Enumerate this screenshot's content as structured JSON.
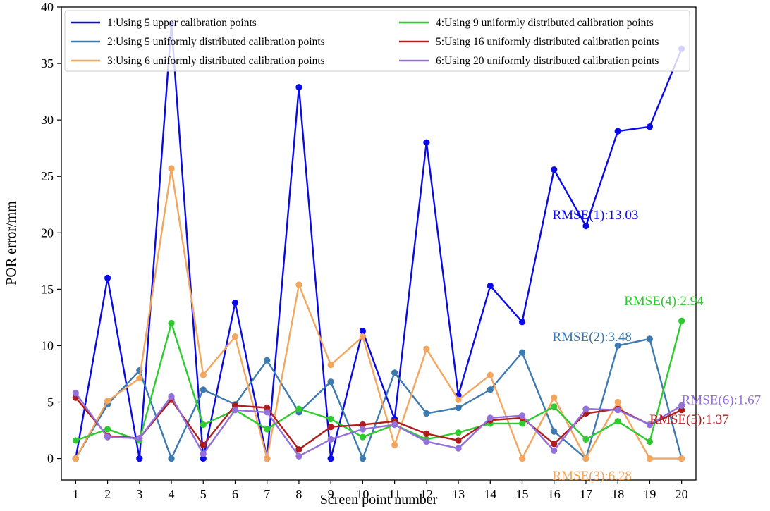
{
  "chart_data": {
    "type": "line",
    "xlabel": "Screen point number",
    "ylabel": "POR error/mm",
    "xlim": [
      0.55,
      20.45
    ],
    "ylim": [
      -1.9,
      40
    ],
    "x": [
      1,
      2,
      3,
      4,
      5,
      6,
      7,
      8,
      9,
      10,
      11,
      12,
      13,
      14,
      15,
      16,
      17,
      18,
      19,
      20
    ],
    "yticks": [
      0,
      5,
      10,
      15,
      20,
      25,
      30,
      35,
      40
    ],
    "legend_position": "top",
    "series": [
      {
        "name": "1:Using 5 upper calibration points",
        "color": "#0a0ae6",
        "values": [
          0,
          16.0,
          0,
          38.5,
          0,
          13.8,
          0,
          32.9,
          0,
          11.3,
          3.5,
          28.0,
          5.6,
          15.3,
          12.1,
          25.6,
          20.6,
          29.0,
          29.4,
          36.3
        ]
      },
      {
        "name": "2:Using 5 uniformly distributed calibration points",
        "color": "#3d7ab0",
        "values": [
          0,
          4.8,
          7.8,
          0,
          6.1,
          4.8,
          8.7,
          4.1,
          6.8,
          0,
          7.6,
          4.0,
          4.5,
          6.1,
          9.4,
          2.4,
          0,
          10.0,
          10.6,
          0
        ]
      },
      {
        "name": "3:Using 6 uniformly distributed calibration points",
        "color": "#f2a65e",
        "values": [
          0,
          5.1,
          7.1,
          25.7,
          7.4,
          10.8,
          0,
          15.4,
          8.3,
          10.8,
          1.2,
          9.7,
          5.2,
          7.4,
          0,
          5.4,
          0,
          5.0,
          0,
          0
        ]
      },
      {
        "name": "4:Using 9 uniformly distributed calibration points",
        "color": "#2fca2f",
        "values": [
          1.6,
          2.6,
          1.6,
          12.0,
          3.0,
          4.3,
          2.6,
          4.4,
          3.5,
          1.9,
          3.0,
          1.7,
          2.3,
          3.1,
          3.1,
          4.6,
          1.7,
          3.3,
          1.5,
          12.2
        ]
      },
      {
        "name": "5:Using 16 uniformly distributed calibration points",
        "color": "#b01c1c",
        "values": [
          5.4,
          2.0,
          1.8,
          5.2,
          1.2,
          4.7,
          4.5,
          0.8,
          2.8,
          3.0,
          3.3,
          2.2,
          1.6,
          3.4,
          3.6,
          1.3,
          4.0,
          4.4,
          3.0,
          4.3
        ]
      },
      {
        "name": "6:Using 20 uniformly distributed calibration points",
        "color": "#9370db",
        "values": [
          5.8,
          1.9,
          1.8,
          5.5,
          0.4,
          4.3,
          4.1,
          0.2,
          1.7,
          2.6,
          3.0,
          1.5,
          0.9,
          3.6,
          3.8,
          0.7,
          4.4,
          4.3,
          3.0,
          4.7
        ]
      }
    ],
    "annotations": [
      {
        "text": "RMSE(1):13.03",
        "x": 15.95,
        "y": 21.2,
        "color": "#0a0ae6"
      },
      {
        "text": "RMSE(2):3.48",
        "x": 15.95,
        "y": 10.4,
        "color": "#3d7ab0"
      },
      {
        "text": "RMSE(3):6.28",
        "x": 15.95,
        "y": -1.9,
        "color": "#f2a65e"
      },
      {
        "text": "RMSE(4):2.94",
        "x": 18.2,
        "y": 13.6,
        "color": "#2fca2f"
      },
      {
        "text": "RMSE(5):1.37",
        "x": 19.0,
        "y": 3.1,
        "color": "#b01c1c"
      },
      {
        "text": "RMSE(6):1.67",
        "x": 20.0,
        "y": 4.8,
        "color": "#9370db"
      }
    ]
  }
}
